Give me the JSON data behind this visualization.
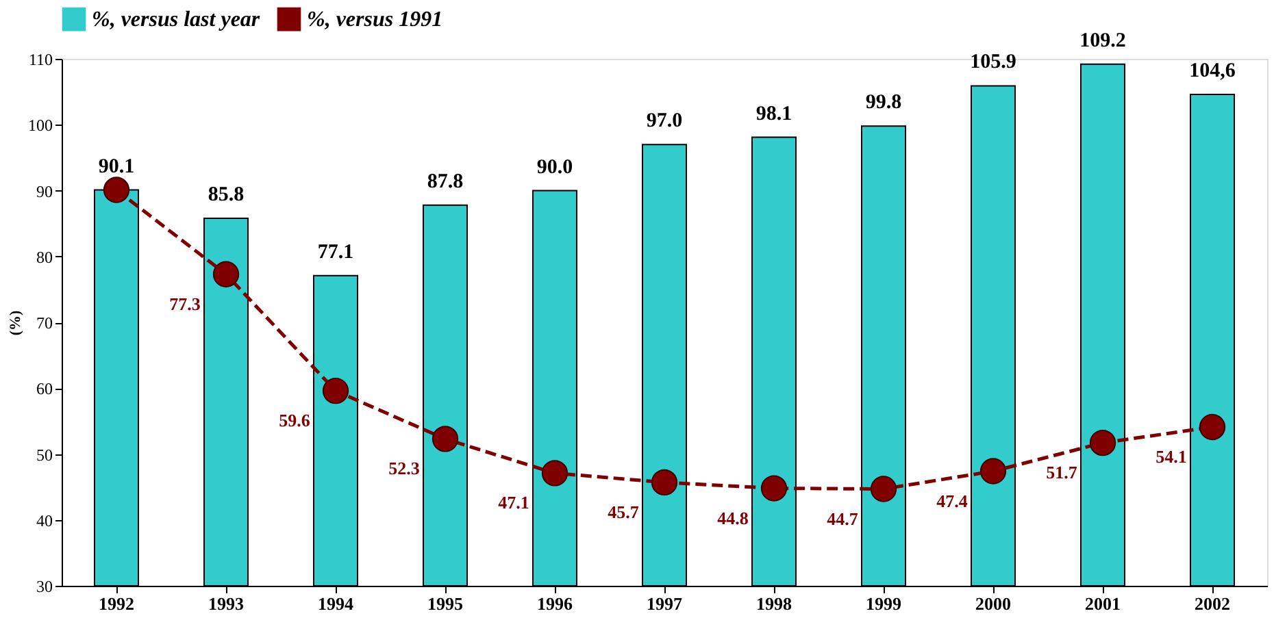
{
  "chart_data": {
    "type": "bar",
    "ylabel": "(%)",
    "categories": [
      "1992",
      "1993",
      "1994",
      "1995",
      "1996",
      "1997",
      "1998",
      "1999",
      "2000",
      "2001",
      "2002"
    ],
    "series": [
      {
        "name": "%, versus last year",
        "color": "#33cccc",
        "values": [
          90.1,
          85.8,
          77.1,
          87.8,
          90.0,
          97.0,
          98.1,
          99.8,
          105.9,
          109.2,
          104.6
        ],
        "value_labels": [
          "90.1",
          "85.8",
          "77.1",
          "87.8",
          "90.0",
          "97.0",
          "98.1",
          "99.8",
          "105.9",
          "109.2",
          "104,6"
        ]
      },
      {
        "name": "%, versus 1991",
        "type": "line",
        "color": "#800000",
        "marker": "circle",
        "line_style": "dashed",
        "values": [
          90.1,
          77.3,
          59.6,
          52.3,
          47.1,
          45.7,
          44.8,
          44.7,
          47.4,
          51.7,
          54.1
        ],
        "value_labels": [
          null,
          "77.3",
          "59.6",
          "52.3",
          "47.1",
          "45.7",
          "44.8",
          "44.7",
          "47.4",
          "51.7",
          "54.1"
        ]
      }
    ],
    "ylim": [
      30,
      110
    ],
    "yticks": [
      30,
      40,
      50,
      60,
      70,
      80,
      90,
      100,
      110
    ],
    "grid": false,
    "legend": "top left"
  }
}
